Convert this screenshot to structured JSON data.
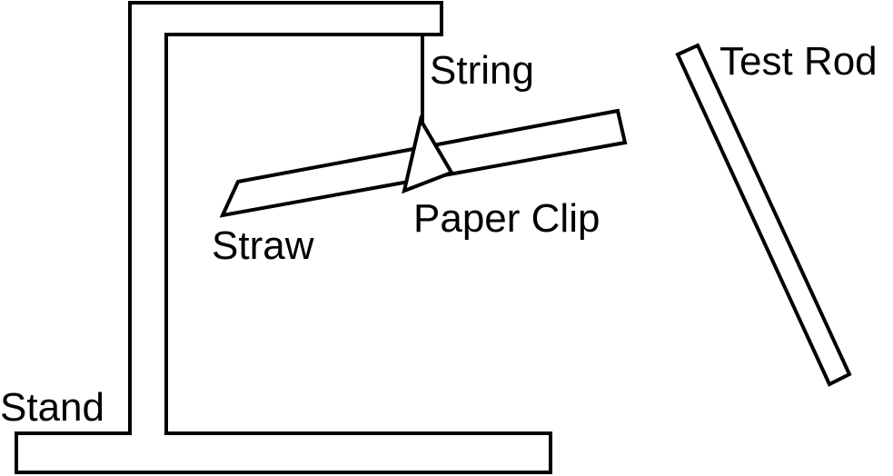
{
  "labels": {
    "string": "String",
    "test_rod": "Test Rod",
    "paper_clip": "Paper Clip",
    "straw": "Straw",
    "stand": "Stand"
  },
  "colors": {
    "stroke": "#000000",
    "background": "#ffffff"
  }
}
